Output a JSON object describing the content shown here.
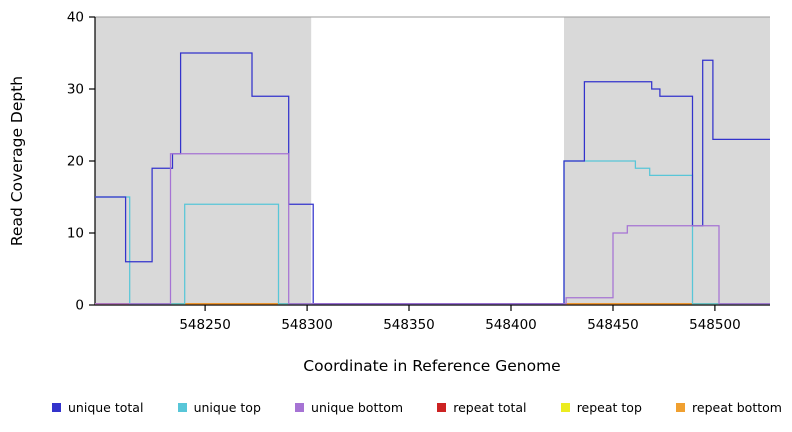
{
  "chart_data": {
    "type": "line",
    "subtype": "step-coverage-plot",
    "title": "",
    "xlabel": "Coordinate in Reference Genome",
    "ylabel": "Read Coverage Depth",
    "xlim": [
      548196,
      548527
    ],
    "ylim": [
      0,
      40
    ],
    "xticks": [
      548250,
      548300,
      548350,
      548400,
      548450,
      548500
    ],
    "yticks": [
      0,
      10,
      20,
      30,
      40
    ],
    "grid": false,
    "legend_position": "bottom",
    "plot_bg": "#ffffff",
    "shade_color": "#d9d9d9",
    "shaded_regions": [
      [
        548196,
        548302
      ],
      [
        548426,
        548527
      ]
    ],
    "series": [
      {
        "name": "unique total",
        "color": "#3333cc",
        "z": 5,
        "steps": [
          [
            548196,
            548211,
            15
          ],
          [
            548211,
            548224,
            6
          ],
          [
            548224,
            548234,
            19
          ],
          [
            548234,
            548238,
            21
          ],
          [
            548238,
            548273,
            35
          ],
          [
            548273,
            548291,
            29
          ],
          [
            548291,
            548303,
            14
          ],
          [
            548303,
            548426,
            0
          ],
          [
            548426,
            548436,
            20
          ],
          [
            548436,
            548469,
            31
          ],
          [
            548469,
            548473,
            30
          ],
          [
            548473,
            548489,
            29
          ],
          [
            548489,
            548494,
            11
          ],
          [
            548494,
            548499,
            34
          ],
          [
            548499,
            548527,
            23
          ]
        ]
      },
      {
        "name": "unique top",
        "color": "#58c6d8",
        "z": 4,
        "steps": [
          [
            548196,
            548213,
            15
          ],
          [
            548213,
            548240,
            0
          ],
          [
            548240,
            548286,
            14
          ],
          [
            548286,
            548426,
            0
          ],
          [
            548426,
            548461,
            20
          ],
          [
            548461,
            548468,
            19
          ],
          [
            548468,
            548489,
            18
          ],
          [
            548489,
            548527,
            0
          ]
        ]
      },
      {
        "name": "unique bottom",
        "color": "#a673d4",
        "z": 6,
        "steps": [
          [
            548196,
            548233,
            0
          ],
          [
            548233,
            548291,
            21
          ],
          [
            548291,
            548427,
            0
          ],
          [
            548427,
            548450,
            1
          ],
          [
            548450,
            548457,
            10
          ],
          [
            548457,
            548502,
            11
          ],
          [
            548502,
            548527,
            0
          ]
        ]
      },
      {
        "name": "repeat total",
        "color": "#cc2222",
        "z": 2,
        "steps": [
          [
            548196,
            548527,
            0
          ]
        ]
      },
      {
        "name": "repeat top",
        "color": "#ecec20",
        "z": 1,
        "steps": [
          [
            548196,
            548527,
            0
          ]
        ]
      },
      {
        "name": "repeat bottom",
        "color": "#f0a030",
        "z": 3,
        "steps": [
          [
            548196,
            548527,
            0
          ]
        ]
      }
    ],
    "legend_order": [
      "unique total",
      "unique top",
      "unique bottom",
      "repeat total",
      "repeat top",
      "repeat bottom"
    ]
  }
}
